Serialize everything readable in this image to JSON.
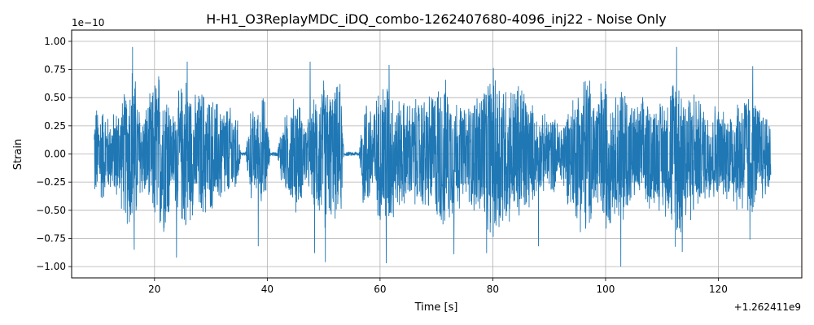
{
  "chart_data": {
    "type": "line",
    "title": "H-H1_O3ReplayMDC_iDQ_combo-1262407680-4096_inj22 - Noise Only",
    "xlabel": "Time [s]",
    "ylabel": "Strain",
    "x_offset_label": "+1.262411e9",
    "y_scale_label": "1e−10",
    "xlim": [
      5.3,
      134.8
    ],
    "ylim": [
      -1.1,
      1.1
    ],
    "x_ticks": [
      20,
      40,
      60,
      80,
      100,
      120
    ],
    "x_tick_labels": [
      "20",
      "40",
      "60",
      "80",
      "100",
      "120"
    ],
    "y_ticks": [
      -1.0,
      -0.75,
      -0.5,
      -0.25,
      0.0,
      0.25,
      0.5,
      0.75,
      1.0
    ],
    "y_tick_labels": [
      "−1.00",
      "−0.75",
      "−0.50",
      "−0.25",
      "0.00",
      "0.25",
      "0.50",
      "0.75",
      "1.00"
    ],
    "grid": true,
    "line_color": "#1f77b4",
    "series": [
      {
        "x_start": 9.3,
        "x_end": 129.3,
        "envelope": [
          [
            9.3,
            0.45
          ],
          [
            10.5,
            0.5
          ],
          [
            12,
            0.35
          ],
          [
            14,
            0.5
          ],
          [
            15.5,
            0.75
          ],
          [
            16.2,
            0.95
          ],
          [
            17,
            0.55
          ],
          [
            18,
            0.4
          ],
          [
            19.5,
            0.6
          ],
          [
            20.5,
            0.85
          ],
          [
            21.5,
            0.75
          ],
          [
            22.3,
            0.8
          ],
          [
            23,
            0.35
          ],
          [
            24,
            0.55
          ],
          [
            25.5,
            0.8
          ],
          [
            27,
            0.55
          ],
          [
            28.5,
            0.65
          ],
          [
            30,
            0.55
          ],
          [
            32,
            0.5
          ],
          [
            33.5,
            0.45
          ],
          [
            34.5,
            0.45
          ],
          [
            35.3,
            0.02
          ],
          [
            36.2,
            0.02
          ],
          [
            37,
            0.45
          ],
          [
            38,
            0.4
          ],
          [
            39.5,
            0.6
          ],
          [
            40.5,
            0.02
          ],
          [
            41.8,
            0.02
          ],
          [
            42.5,
            0.3
          ],
          [
            43.5,
            0.4
          ],
          [
            45,
            0.6
          ],
          [
            47,
            0.3
          ],
          [
            48.5,
            0.55
          ],
          [
            50,
            0.75
          ],
          [
            51.5,
            0.6
          ],
          [
            53,
            0.7
          ],
          [
            53.6,
            0.02
          ],
          [
            56.3,
            0.02
          ],
          [
            57,
            0.55
          ],
          [
            59,
            0.5
          ],
          [
            61,
            0.8
          ],
          [
            63,
            0.55
          ],
          [
            65,
            0.5
          ],
          [
            67,
            0.55
          ],
          [
            69,
            0.6
          ],
          [
            71,
            0.75
          ],
          [
            73,
            0.6
          ],
          [
            75,
            0.45
          ],
          [
            77,
            0.6
          ],
          [
            79,
            0.8
          ],
          [
            81,
            0.85
          ],
          [
            83,
            0.65
          ],
          [
            85,
            0.75
          ],
          [
            86.5,
            0.55
          ],
          [
            88,
            0.35
          ],
          [
            90,
            0.4
          ],
          [
            92,
            0.3
          ],
          [
            93.5,
            0.5
          ],
          [
            95,
            0.65
          ],
          [
            96.5,
            0.85
          ],
          [
            98,
            0.6
          ],
          [
            100,
            0.8
          ],
          [
            101.5,
            0.55
          ],
          [
            103,
            0.75
          ],
          [
            105,
            0.45
          ],
          [
            107,
            0.55
          ],
          [
            109,
            0.5
          ],
          [
            111,
            0.6
          ],
          [
            112.5,
            0.9
          ],
          [
            114,
            0.7
          ],
          [
            116,
            0.6
          ],
          [
            117.5,
            0.45
          ],
          [
            119.5,
            0.5
          ],
          [
            121,
            0.4
          ],
          [
            123,
            0.55
          ],
          [
            125,
            0.65
          ],
          [
            126.5,
            0.55
          ],
          [
            128,
            0.45
          ],
          [
            129.3,
            0.4
          ]
        ],
        "spikes": [
          [
            16.1,
            0.95
          ],
          [
            16.4,
            -0.85
          ],
          [
            23.9,
            -0.92
          ],
          [
            25.8,
            0.82
          ],
          [
            38.4,
            -0.82
          ],
          [
            47.6,
            0.82
          ],
          [
            48.4,
            -0.88
          ],
          [
            50.3,
            -0.96
          ],
          [
            61.1,
            -0.97
          ],
          [
            61.6,
            0.79
          ],
          [
            73.1,
            -0.89
          ],
          [
            78.9,
            -0.88
          ],
          [
            88.1,
            -0.82
          ],
          [
            102.7,
            -1.0
          ],
          [
            112.6,
            0.95
          ],
          [
            113.6,
            -0.87
          ],
          [
            125.6,
            -0.76
          ],
          [
            126.1,
            0.78
          ]
        ]
      }
    ]
  }
}
